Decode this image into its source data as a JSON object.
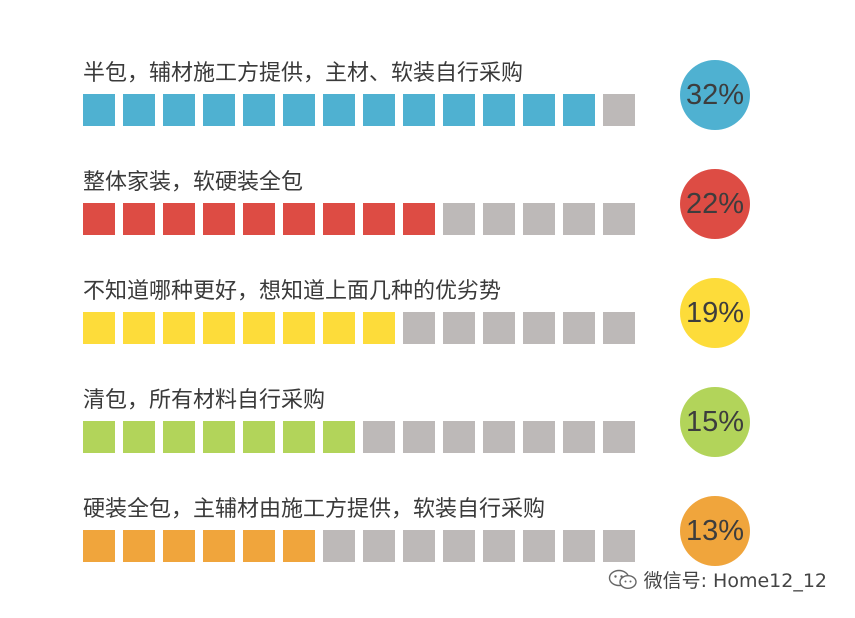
{
  "chart_data": {
    "type": "bar",
    "total_blocks": 14,
    "inactive_color": "#bdb9b8",
    "rows": [
      {
        "label": "半包，辅材施工方提供，主材、软装自行采购",
        "value": 32,
        "value_text": "32%",
        "filled_blocks": 13,
        "color": "#4fb1d1"
      },
      {
        "label": "整体家装，软硬装全包",
        "value": 22,
        "value_text": "22%",
        "filled_blocks": 9,
        "color": "#dd4c44"
      },
      {
        "label": "不知道哪种更好，想知道上面几种的优劣势",
        "value": 19,
        "value_text": "19%",
        "filled_blocks": 8,
        "color": "#fddc3a"
      },
      {
        "label": "清包，所有材料自行采购",
        "value": 15,
        "value_text": "15%",
        "filled_blocks": 7,
        "color": "#b2d45a"
      },
      {
        "label": "硬装全包，主辅材由施工方提供，软装自行采购",
        "value": 13,
        "value_text": "13%",
        "filled_blocks": 6,
        "color": "#f0a53c"
      }
    ]
  },
  "watermark": {
    "text": "微信号: Home12_12",
    "icon": "wechat-icon"
  }
}
